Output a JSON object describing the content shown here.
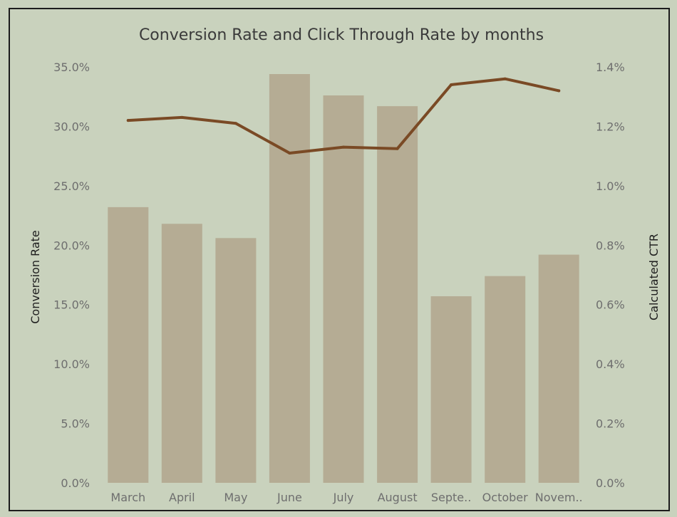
{
  "chart_data": {
    "type": "bar",
    "title": "Conversion Rate and Click Through Rate by months",
    "categories": [
      "March",
      "April",
      "May",
      "June",
      "July",
      "August",
      "Septe..",
      "October",
      "Novem.."
    ],
    "series": [
      {
        "name": "Conversion Rate",
        "type": "bar",
        "axis": "left",
        "values": [
          23.2,
          21.8,
          20.6,
          34.4,
          32.6,
          31.7,
          15.7,
          17.4,
          19.2
        ],
        "color": "#b5ac94"
      },
      {
        "name": "Calculated CTR",
        "type": "line",
        "axis": "right",
        "values": [
          1.22,
          1.23,
          1.21,
          1.11,
          1.13,
          1.125,
          1.34,
          1.36,
          1.32
        ],
        "color": "#7a4a25"
      }
    ],
    "ylabel": "Conversion Rate",
    "y2label": "Calculated CTR",
    "ylim": [
      0,
      35
    ],
    "y2lim": [
      0,
      1.4
    ],
    "yticks": [
      "0.0%",
      "5.0%",
      "10.0%",
      "15.0%",
      "20.0%",
      "25.0%",
      "30.0%",
      "35.0%"
    ],
    "y2ticks": [
      "0.0%",
      "0.2%",
      "0.4%",
      "0.6%",
      "0.8%",
      "1.0%",
      "1.2%",
      "1.4%"
    ],
    "grid": false,
    "legend": "none"
  },
  "colors": {
    "background": "#c9d2bd",
    "border": "#1c1c1c"
  }
}
